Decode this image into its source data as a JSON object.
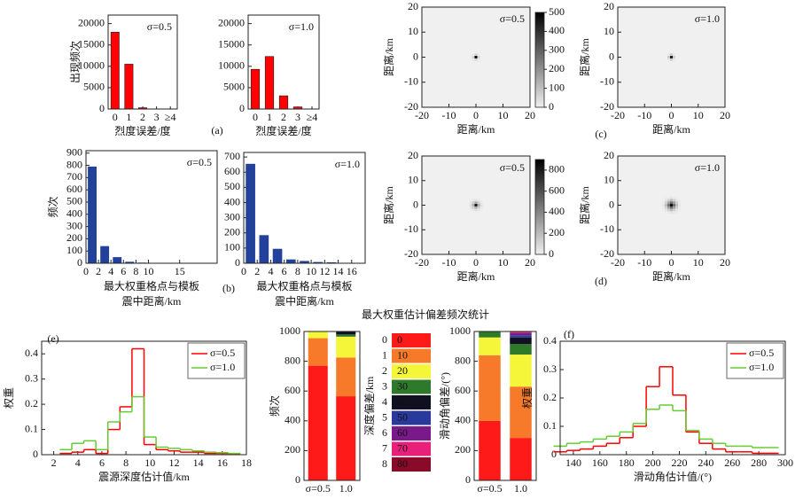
{
  "chart_data": [
    {
      "type": "bar",
      "categories": [
        "0",
        "1",
        "2",
        "3",
        "≥4"
      ],
      "values": [
        18000,
        10500,
        300,
        0,
        0
      ],
      "color": "#ff0000",
      "ylim": [
        0,
        22000
      ],
      "yticks": [
        0,
        5000,
        10000,
        15000,
        20000
      ],
      "ylabel": "出现频次",
      "xlabel": "烈度误差/度",
      "annotation": "σ=0.5"
    },
    {
      "type": "bar",
      "categories": [
        "0",
        "1",
        "2",
        "3",
        "≥4"
      ],
      "values": [
        9300,
        12300,
        3100,
        500,
        0
      ],
      "color": "#ff0000",
      "ylim": [
        0,
        22000
      ],
      "yticks": [
        0,
        5000,
        10000,
        15000,
        20000
      ],
      "xlabel": "烈度误差/度",
      "annotation": "σ=1.0",
      "panel_label": "(a)"
    },
    {
      "type": "heatmap",
      "x": [
        -3,
        -2,
        -1,
        0,
        1,
        2,
        3
      ],
      "y": [
        3,
        2,
        1,
        0,
        -1,
        -2,
        -3
      ],
      "z": [
        [
          0,
          0,
          0,
          0,
          0,
          0,
          0
        ],
        [
          0,
          0,
          0,
          0,
          0,
          0,
          0
        ],
        [
          0,
          0,
          10,
          60,
          10,
          0,
          0
        ],
        [
          0,
          0,
          60,
          500,
          60,
          0,
          0
        ],
        [
          0,
          0,
          10,
          60,
          10,
          0,
          0
        ],
        [
          0,
          0,
          0,
          0,
          0,
          0,
          0
        ],
        [
          0,
          0,
          0,
          0,
          0,
          0,
          0
        ]
      ],
      "zlim": [
        0,
        500
      ],
      "colorbar_ticks": [
        0,
        100,
        200,
        300,
        400,
        500
      ],
      "xlim": [
        -20,
        20
      ],
      "ylim": [
        -20,
        20
      ],
      "xticks": [
        -20,
        -10,
        0,
        10,
        20
      ],
      "yticks": [
        -20,
        -10,
        0,
        10,
        20
      ],
      "xlabel": "距离/km",
      "ylabel": "距离/km",
      "annotation": "σ=0.5"
    },
    {
      "type": "heatmap",
      "x": [
        -3,
        -2,
        -1,
        0,
        1,
        2,
        3
      ],
      "y": [
        3,
        2,
        1,
        0,
        -1,
        -2,
        -3
      ],
      "z": [
        [
          0,
          0,
          0,
          0,
          0,
          0,
          0
        ],
        [
          0,
          0,
          0,
          0,
          0,
          0,
          0
        ],
        [
          0,
          0,
          15,
          80,
          15,
          0,
          0
        ],
        [
          0,
          0,
          80,
          450,
          80,
          0,
          0
        ],
        [
          0,
          0,
          15,
          80,
          15,
          0,
          0
        ],
        [
          0,
          0,
          0,
          0,
          0,
          0,
          0
        ],
        [
          0,
          0,
          0,
          0,
          0,
          0,
          0
        ]
      ],
      "zlim": [
        0,
        500
      ],
      "xlim": [
        -20,
        20
      ],
      "ylim": [
        -20,
        20
      ],
      "xticks": [
        -20,
        -10,
        0,
        10,
        20
      ],
      "yticks": [
        -20,
        -10,
        0,
        10,
        20
      ],
      "xlabel": "距离/km",
      "ylabel": "距离/km",
      "annotation": "σ=1.0",
      "panel_label": "(c)"
    },
    {
      "type": "heatmap",
      "x": [
        -3,
        -2,
        -1,
        0,
        1,
        2,
        3
      ],
      "y": [
        3,
        2,
        1,
        0,
        -1,
        -2,
        -3
      ],
      "z": [
        [
          0,
          0,
          0,
          0,
          0,
          0,
          0
        ],
        [
          0,
          10,
          30,
          60,
          30,
          10,
          0
        ],
        [
          0,
          30,
          120,
          250,
          120,
          30,
          0
        ],
        [
          0,
          60,
          250,
          850,
          250,
          60,
          0
        ],
        [
          0,
          30,
          120,
          250,
          120,
          30,
          0
        ],
        [
          0,
          10,
          30,
          60,
          30,
          10,
          0
        ],
        [
          0,
          0,
          0,
          0,
          0,
          0,
          0
        ]
      ],
      "zlim": [
        0,
        900
      ],
      "colorbar_ticks": [
        0,
        200,
        400,
        600,
        800
      ],
      "xlim": [
        -20,
        20
      ],
      "ylim": [
        -20,
        20
      ],
      "xticks": [
        -20,
        -10,
        0,
        10,
        20
      ],
      "yticks": [
        -20,
        -10,
        0,
        10,
        20
      ],
      "xlabel": "距离/km",
      "ylabel": "距离/km",
      "annotation": "σ=0.5"
    },
    {
      "type": "heatmap",
      "x": [
        -3,
        -2,
        -1,
        0,
        1,
        2,
        3
      ],
      "y": [
        3,
        2,
        1,
        0,
        -1,
        -2,
        -3
      ],
      "z": [
        [
          0,
          10,
          20,
          40,
          20,
          10,
          0
        ],
        [
          10,
          40,
          120,
          200,
          120,
          40,
          10
        ],
        [
          20,
          120,
          300,
          500,
          300,
          120,
          20
        ],
        [
          40,
          200,
          500,
          900,
          500,
          200,
          40
        ],
        [
          20,
          120,
          300,
          500,
          300,
          120,
          20
        ],
        [
          10,
          40,
          120,
          200,
          120,
          40,
          10
        ],
        [
          0,
          10,
          20,
          40,
          20,
          10,
          0
        ]
      ],
      "zlim": [
        0,
        900
      ],
      "xlim": [
        -20,
        20
      ],
      "ylim": [
        -20,
        20
      ],
      "xticks": [
        -20,
        -10,
        0,
        10,
        20
      ],
      "yticks": [
        -20,
        -10,
        0,
        10,
        20
      ],
      "xlabel": "距离/km",
      "ylabel": "距离/km",
      "annotation": "σ=1.0",
      "panel_label": "(d)"
    },
    {
      "type": "bar",
      "x": [
        1,
        3,
        5,
        7,
        9,
        11,
        13
      ],
      "values": [
        790,
        140,
        50,
        12,
        5,
        2,
        1
      ],
      "color": "#23409a",
      "xlim": [
        0,
        21
      ],
      "xticks": [
        0,
        2,
        4,
        6,
        8,
        10,
        15
      ],
      "ylim": [
        0,
        920
      ],
      "yticks": [
        0,
        100,
        200,
        300,
        400,
        500,
        600,
        700,
        800,
        900
      ],
      "ylabel": "频次",
      "xlabel": [
        "最大权重格点与模板",
        "震中距离/km"
      ],
      "annotation": "σ=0.5"
    },
    {
      "type": "bar",
      "x": [
        1,
        3,
        5,
        7,
        9,
        11,
        13,
        15
      ],
      "values": [
        655,
        185,
        95,
        25,
        15,
        8,
        6,
        3
      ],
      "color": "#23409a",
      "xlim": [
        0,
        18
      ],
      "xticks": [
        0,
        2,
        4,
        6,
        8,
        10,
        12,
        14,
        16
      ],
      "ylim": [
        0,
        730
      ],
      "yticks": [
        0,
        100,
        200,
        300,
        400,
        500,
        600,
        700
      ],
      "xlabel": [
        "最大权重格点与模板",
        "震中距离/km"
      ],
      "annotation": "σ=1.0",
      "panel_label": "(b)"
    },
    {
      "type": "line",
      "drawstyle": "steps-mid",
      "x": [
        3,
        4,
        5,
        6,
        7,
        8,
        9,
        10,
        11,
        12,
        13,
        14,
        15,
        16,
        17
      ],
      "series": [
        {
          "name": "σ=0.5",
          "color": "#ff0000",
          "values": [
            0.005,
            0.01,
            0.02,
            0.005,
            0.1,
            0.19,
            0.42,
            0.04,
            0.02,
            0.015,
            0.01,
            0.01,
            0.005,
            0.005,
            0.003
          ]
        },
        {
          "name": "σ=1.0",
          "color": "#66cc33",
          "values": [
            0.02,
            0.045,
            0.055,
            0.02,
            0.13,
            0.17,
            0.23,
            0.07,
            0.03,
            0.025,
            0.02,
            0.015,
            0.01,
            0.008,
            0.005
          ]
        }
      ],
      "xlim": [
        1,
        18
      ],
      "xticks": [
        2,
        4,
        6,
        8,
        10,
        12,
        14,
        16,
        18
      ],
      "ylim": [
        0,
        0.45
      ],
      "yticks": [
        0,
        0.1,
        0.2,
        0.3,
        0.4
      ],
      "xlabel": "震源深度估计值/km",
      "ylabel": "权重",
      "legend": "upper right",
      "panel_label": "(e)"
    },
    {
      "type": "stacked_bar",
      "title": "最大权重估计偏差频次统计",
      "categories": [
        "σ=0.5",
        "1.0"
      ],
      "series": [
        {
          "name": "0",
          "color": "#ff1a1a",
          "values": [
            770,
            565
          ]
        },
        {
          "name": "1",
          "color": "#f7792a",
          "values": [
            185,
            260
          ]
        },
        {
          "name": "2",
          "color": "#f5f53a",
          "values": [
            45,
            140
          ]
        },
        {
          "name": "3",
          "color": "#2f7a2a",
          "values": [
            0,
            15
          ]
        },
        {
          "name": "4",
          "color": "#101020",
          "values": [
            0,
            20
          ]
        },
        {
          "name": "5",
          "color": "#2a3a9a",
          "values": [
            0,
            0
          ]
        },
        {
          "name": "6",
          "color": "#7a1a8a",
          "values": [
            0,
            0
          ]
        },
        {
          "name": "7",
          "color": "#e8207a",
          "values": [
            0,
            0
          ]
        },
        {
          "name": "8",
          "color": "#8a0a2a",
          "values": [
            0,
            0
          ]
        }
      ],
      "ylim": [
        0,
        1000
      ],
      "yticks": [
        0,
        200,
        400,
        600,
        800,
        1000
      ],
      "ylabel": "频次",
      "legend_title": "深度偏差/km"
    },
    {
      "type": "stacked_bar",
      "categories": [
        "σ=0.5",
        "1.0"
      ],
      "series": [
        {
          "name": "0",
          "color": "#ff1a1a",
          "values": [
            400,
            285
          ]
        },
        {
          "name": "10",
          "color": "#f7792a",
          "values": [
            440,
            345
          ]
        },
        {
          "name": "20",
          "color": "#f5f53a",
          "values": [
            120,
            215
          ]
        },
        {
          "name": "30",
          "color": "#2f7a2a",
          "values": [
            40,
            70
          ]
        },
        {
          "name": "40",
          "color": "#101020",
          "values": [
            0,
            45
          ]
        },
        {
          "name": "50",
          "color": "#2a3a9a",
          "values": [
            0,
            15
          ]
        },
        {
          "name": "60",
          "color": "#7a1a8a",
          "values": [
            0,
            15
          ]
        },
        {
          "name": "70",
          "color": "#e8207a",
          "values": [
            0,
            5
          ]
        },
        {
          "name": "80",
          "color": "#8a0a2a",
          "values": [
            0,
            5
          ]
        }
      ],
      "ylim": [
        0,
        1000
      ],
      "yticks": [
        0,
        200,
        400,
        600,
        800,
        1000
      ],
      "legend_title": "滑动角偏差/(°)"
    },
    {
      "type": "line",
      "drawstyle": "steps-mid",
      "x": [
        130,
        140,
        150,
        160,
        170,
        180,
        190,
        200,
        210,
        220,
        230,
        240,
        250,
        260,
        270,
        280,
        290
      ],
      "series": [
        {
          "name": "σ=0.5",
          "color": "#ff0000",
          "values": [
            0.01,
            0.015,
            0.02,
            0.03,
            0.04,
            0.06,
            0.1,
            0.24,
            0.31,
            0.21,
            0.08,
            0.04,
            0.02,
            0.01,
            0.01,
            0.005,
            0.005
          ]
        },
        {
          "name": "σ=1.0",
          "color": "#66cc33",
          "values": [
            0.03,
            0.04,
            0.045,
            0.055,
            0.065,
            0.08,
            0.11,
            0.16,
            0.175,
            0.155,
            0.085,
            0.055,
            0.04,
            0.03,
            0.03,
            0.025,
            0.025
          ]
        }
      ],
      "xlim": [
        130,
        300
      ],
      "xticks": [
        140,
        160,
        180,
        200,
        220,
        240,
        260,
        280,
        300
      ],
      "ylim": [
        0,
        0.4
      ],
      "yticks": [
        0,
        0.1,
        0.2,
        0.3,
        0.4
      ],
      "xlabel": "滑动角估计值/(°)",
      "ylabel": "权重",
      "legend": "upper right",
      "panel_label": "(f)"
    }
  ]
}
